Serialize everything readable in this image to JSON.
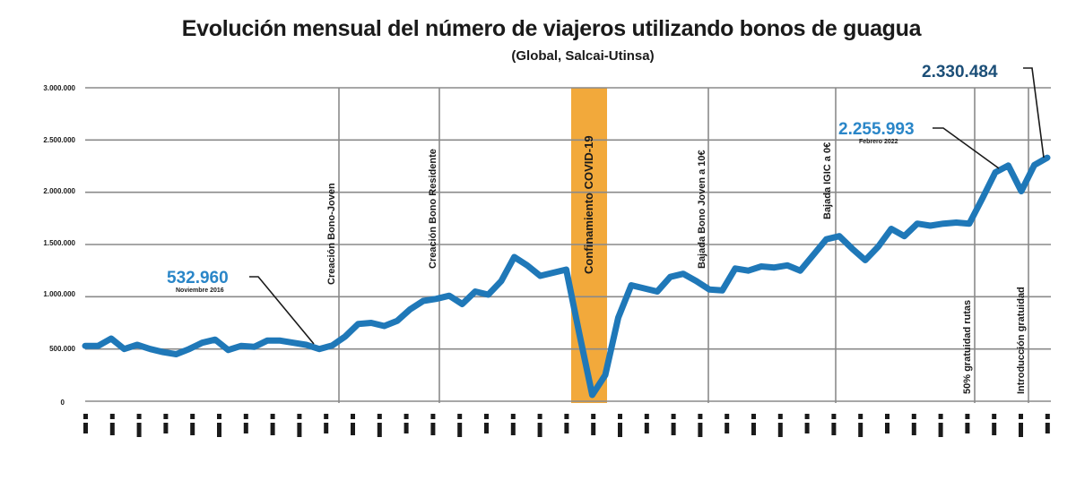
{
  "header": {
    "title": "Evolución mensual del número de viajeros utilizando bonos de guagua",
    "subtitle": "(Global, Salcai-Utinsa)"
  },
  "colors": {
    "line": "#1f78b8",
    "covid_band": "#f2a93b",
    "grid": "#8a8a8a",
    "callout_dark": "#1c4f78",
    "callout_light": "#2a86c8"
  },
  "chart_data": {
    "type": "line",
    "title": "Evolución mensual del número de viajeros utilizando bonos de guagua",
    "subtitle": "(Global, Salcai-Utinsa)",
    "xlabel": "",
    "ylabel": "",
    "ylim": [
      0,
      3000000
    ],
    "yticks": [
      0,
      500000,
      1000000,
      1500000,
      2000000,
      2500000,
      3000000
    ],
    "ytick_labels": [
      "0",
      "500.000",
      "1.000.000",
      "1.500.000",
      "2.000.000",
      "2.500.000",
      "3.000.000"
    ],
    "grid": true,
    "legend": "none",
    "x_label_note": "Monthly rotated labels (illegible in source)",
    "values": [
      530000,
      530000,
      600000,
      500000,
      540000,
      500000,
      470000,
      450000,
      500000,
      560000,
      590000,
      490000,
      530000,
      520000,
      580000,
      580000,
      560000,
      540000,
      500000,
      532960,
      620000,
      740000,
      750000,
      720000,
      770000,
      880000,
      960000,
      980000,
      1010000,
      930000,
      1050000,
      1020000,
      1150000,
      1380000,
      1300000,
      1200000,
      1230000,
      1260000,
      650000,
      60000,
      250000,
      800000,
      1110000,
      1080000,
      1050000,
      1190000,
      1220000,
      1150000,
      1070000,
      1060000,
      1270000,
      1250000,
      1290000,
      1280000,
      1300000,
      1250000,
      1400000,
      1550000,
      1580000,
      1460000,
      1350000,
      1480000,
      1650000,
      1580000,
      1700000,
      1680000,
      1700000,
      1710000,
      1700000,
      1940000,
      2190000,
      2255993,
      2010000,
      2260000,
      2330484
    ],
    "annotations": [
      {
        "label": "Creación Bono-Joven",
        "type": "vline"
      },
      {
        "label": "Creación Bono Residente",
        "type": "vline"
      },
      {
        "label": "Confinamiento COVID-19",
        "type": "band"
      },
      {
        "label": "Bajada Bono Joven a 10€",
        "type": "vline"
      },
      {
        "label": "Bajada IGIC a 0€",
        "type": "vline"
      },
      {
        "label": "50% gratuidad rutas",
        "type": "vline"
      },
      {
        "label": "Introducción gratuidad",
        "type": "vline"
      }
    ],
    "callouts": [
      {
        "value": "532.960",
        "sublabel": "Noviembre 2016"
      },
      {
        "value": "2.255.993",
        "sublabel": "Febrero 2022"
      },
      {
        "value": "2.330.484",
        "sublabel": ""
      }
    ]
  },
  "axis": {
    "y_labels": [
      "3.000.000",
      "2.500.000",
      "2.000.000",
      "1.500.000",
      "1.000.000",
      "500.000",
      "0"
    ]
  },
  "annotations": {
    "a1": "Creación Bono-Joven",
    "a2": "Creación Bono Residente",
    "a3": "Confinamiento COVID-19",
    "a4": "Bajada Bono Joven a 10€",
    "a5": "Bajada IGIC a 0€",
    "a6": "50% gratuidad rutas",
    "a7": "Introducción gratuidad"
  },
  "callouts": {
    "c1_value": "532.960",
    "c1_sub": "Noviembre 2016",
    "c2_value": "2.255.993",
    "c2_sub": "Febrero 2022",
    "c3_value": "2.330.484"
  }
}
